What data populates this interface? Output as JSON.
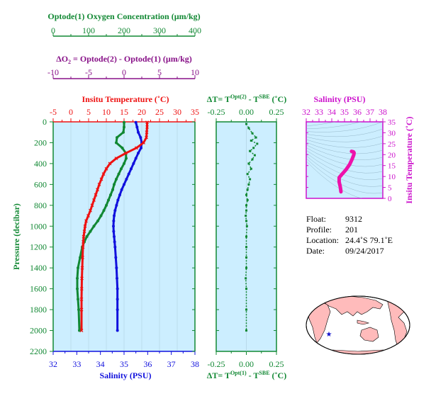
{
  "colors": {
    "oxygen": "#118833",
    "delta_o2": "#881188",
    "temperature": "#ee1111",
    "salinity": "#1111dd",
    "delta_t": "#118833",
    "ts_curve": "#ee11aa",
    "ts_axes": "#cc11cc",
    "panel_bg": "#cceeff",
    "land": "#ffbbbb",
    "ocean": "#ffffff",
    "marker": "#1111cc"
  },
  "axes": {
    "oxygen_title": "Optode(1) Oxygen Concentration (µm/kg)",
    "oxygen_ticks": [
      "0",
      "100",
      "200",
      "300",
      "400"
    ],
    "delta_o2_title_a": "ΔO",
    "delta_o2_title_sub": "2",
    "delta_o2_title_b": " = Optode(2) - Optode(1)   (µm/kg)",
    "delta_o2_ticks": [
      "-10",
      "-5",
      "0",
      "5",
      "10"
    ],
    "temperature_title": "Insitu Temperature (˚C)",
    "temperature_ticks": [
      "-5",
      "0",
      "5",
      "10",
      "15",
      "20",
      "25",
      "30",
      "35"
    ],
    "pressure_title": "Pressure (decibar)",
    "pressure_ticks": [
      "0",
      "200",
      "400",
      "600",
      "800",
      "1000",
      "1200",
      "1400",
      "1600",
      "1800",
      "2000",
      "2200"
    ],
    "salinity_title": "Salinity (PSU)",
    "salinity_ticks": [
      "32",
      "33",
      "34",
      "35",
      "36",
      "37",
      "38"
    ],
    "dt_top_a": "ΔT= T",
    "dt_top_sup": "Opt(2)",
    "dt_top_b": " - T",
    "dt_top_sup2": "SBE",
    "dt_top_c": " (˚C)",
    "dt_bottom_sup": "Opt(1)",
    "dt_ticks": [
      "-0.25",
      "0.00",
      "0.25"
    ],
    "ts_title": "Salinity (PSU)",
    "ts_sal_ticks": [
      "32",
      "33",
      "34",
      "35",
      "36",
      "37",
      "38"
    ],
    "ts_temp_title": "Insitu Temperature (˚C)",
    "ts_temp_ticks": [
      "0",
      "5",
      "10",
      "15",
      "20",
      "25",
      "30",
      "35"
    ]
  },
  "info": {
    "float_label": "Float:",
    "float_value": "9312",
    "profile_label": "Profile:",
    "profile_value": "201",
    "location_label": "Location:",
    "location_value": "24.4˚S  79.1˚E",
    "date_label": "Date:",
    "date_value": "09/24/2017"
  },
  "chart_data": [
    {
      "type": "line",
      "name": "Insitu Temperature (˚C)",
      "x_axis": "temperature",
      "xlim": [
        -5,
        35
      ],
      "y_axis": "pressure",
      "ylim": [
        0,
        2200
      ],
      "y_inverted": true,
      "x": [
        21.5,
        21.5,
        21.4,
        21.3,
        20.5,
        18.5,
        15.5,
        12.8,
        11.0,
        10.0,
        9.2,
        8.6,
        8.0,
        7.5,
        7.0,
        6.5,
        6.0,
        5.5,
        4.9,
        4.3,
        4.0,
        3.8,
        3.6,
        3.5,
        3.4,
        3.3,
        3.2,
        3.1,
        3.05,
        3.0,
        3.0,
        3.0
      ],
      "y": [
        5,
        50,
        100,
        150,
        200,
        250,
        300,
        350,
        400,
        450,
        500,
        550,
        600,
        650,
        700,
        750,
        800,
        850,
        900,
        950,
        1000,
        1050,
        1100,
        1150,
        1200,
        1300,
        1400,
        1500,
        1600,
        1700,
        1800,
        2000
      ]
    },
    {
      "type": "line",
      "name": "Salinity (PSU)",
      "x_axis": "salinity",
      "xlim": [
        32,
        38
      ],
      "y_axis": "pressure",
      "ylim": [
        0,
        2200
      ],
      "y_inverted": true,
      "x": [
        35.5,
        35.55,
        35.6,
        35.7,
        35.75,
        35.72,
        35.6,
        35.5,
        35.4,
        35.3,
        35.2,
        35.1,
        35.0,
        34.9,
        34.82,
        34.74,
        34.68,
        34.62,
        34.58,
        34.56,
        34.55,
        34.56,
        34.58,
        34.6,
        34.62,
        34.65,
        34.68,
        34.7,
        34.72,
        34.72,
        34.72,
        34.72
      ],
      "y": [
        5,
        50,
        100,
        150,
        200,
        250,
        300,
        350,
        400,
        450,
        500,
        550,
        600,
        650,
        700,
        750,
        800,
        850,
        900,
        950,
        1000,
        1050,
        1100,
        1150,
        1200,
        1300,
        1400,
        1500,
        1600,
        1700,
        1800,
        2000
      ]
    },
    {
      "type": "line",
      "name": "Optode(1) Oxygen Concentration",
      "x_axis": "oxygen",
      "xlim": [
        0,
        400
      ],
      "y_axis": "pressure",
      "ylim": [
        0,
        2200
      ],
      "y_inverted": true,
      "x": [
        200,
        200,
        198,
        180,
        178,
        195,
        205,
        206,
        200,
        192,
        185,
        178,
        172,
        168,
        162,
        156,
        150,
        143,
        135,
        126,
        115,
        105,
        95,
        88,
        82,
        76,
        70,
        68,
        68,
        70,
        72,
        74
      ],
      "y": [
        5,
        50,
        100,
        150,
        200,
        250,
        300,
        350,
        400,
        450,
        500,
        550,
        600,
        650,
        700,
        750,
        800,
        850,
        900,
        950,
        1000,
        1050,
        1100,
        1150,
        1200,
        1300,
        1400,
        1500,
        1600,
        1700,
        1800,
        2000
      ]
    },
    {
      "type": "scatter",
      "name": "ΔT",
      "x_axis": "delta_t",
      "xlim": [
        -0.25,
        0.25
      ],
      "y_axis": "pressure",
      "ylim": [
        0,
        2200
      ],
      "y_inverted": true,
      "x": [
        0.0,
        0.02,
        0.05,
        0.08,
        0.04,
        0.09,
        0.06,
        0.03,
        0.07,
        0.05,
        0.02,
        0.04,
        0.01,
        0.03,
        0.02,
        0.01,
        0.0,
        0.01,
        0.0,
        0.0,
        -0.005,
        0.0,
        0.005,
        0.0,
        0.0,
        0.0,
        0.0,
        -0.005,
        0.0,
        0.0,
        0.0
      ],
      "y": [
        20,
        60,
        110,
        150,
        180,
        210,
        250,
        280,
        320,
        360,
        400,
        450,
        500,
        550,
        600,
        650,
        700,
        750,
        800,
        850,
        900,
        950,
        1000,
        1100,
        1200,
        1300,
        1400,
        1500,
        1600,
        1800,
        2000
      ]
    },
    {
      "type": "line",
      "name": "T-S diagram",
      "x_axis": "ts_salinity",
      "xlim": [
        32,
        38
      ],
      "y_axis": "ts_temperature",
      "ylim": [
        0,
        35
      ],
      "x": [
        34.72,
        34.7,
        34.66,
        34.58,
        34.58,
        34.8,
        35.1,
        35.4,
        35.6,
        35.72,
        35.75,
        35.7,
        35.55
      ],
      "y": [
        3.0,
        4.0,
        5.5,
        7.5,
        9.5,
        11.0,
        13.0,
        15.5,
        18.0,
        19.8,
        20.8,
        21.3,
        21.5
      ]
    }
  ]
}
